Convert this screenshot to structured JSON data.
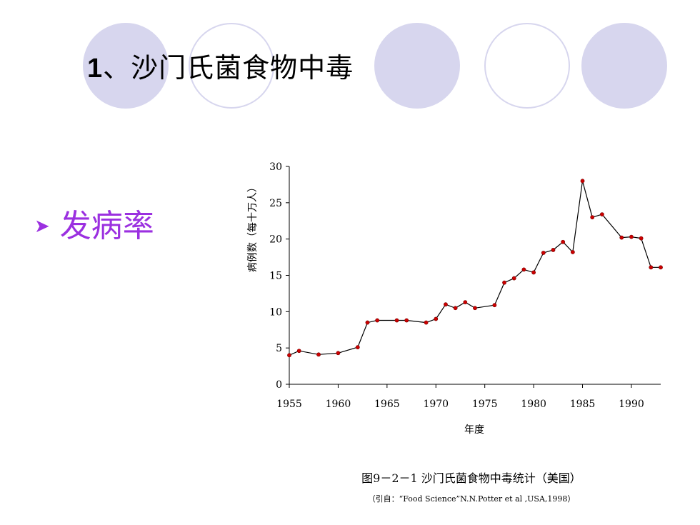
{
  "slide": {
    "title_number": "1",
    "title_text": "、沙门氏菌食物中毒",
    "bullet_text": "发病率"
  },
  "icons": {
    "bullet": "arrow-bullet-icon"
  },
  "colors": {
    "circle_fill": "#d7d6ee",
    "bullet": "#9b30e0",
    "marker": "#cc0000",
    "line": "#000000"
  },
  "chart_data": {
    "type": "line",
    "title": "",
    "xlabel": "年度",
    "ylabel": "病例数（每十万人）",
    "xlim": [
      1955,
      1993
    ],
    "ylim": [
      0,
      30
    ],
    "x_ticks": [
      "1955",
      "1960",
      "1965",
      "1970",
      "1975",
      "1980",
      "1985",
      "1990"
    ],
    "y_ticks": [
      "0",
      "5",
      "10",
      "15",
      "20",
      "25",
      "30"
    ],
    "grid": false,
    "legend": "none",
    "series": [
      {
        "x": [
          1955,
          1956,
          1958,
          1960,
          1962,
          1963,
          1964,
          1966,
          1967,
          1969,
          1970,
          1971,
          1972,
          1973,
          1974,
          1976,
          1977,
          1978,
          1979,
          1980,
          1981,
          1982,
          1983,
          1984,
          1985,
          1986,
          1987,
          1989,
          1990,
          1991,
          1992,
          1993
        ],
        "y": [
          4.0,
          4.6,
          4.1,
          4.3,
          5.1,
          8.5,
          8.8,
          8.8,
          8.8,
          8.5,
          9.0,
          11.0,
          10.5,
          11.3,
          10.5,
          10.9,
          14.0,
          14.6,
          15.8,
          15.4,
          18.1,
          18.5,
          19.6,
          18.2,
          28.0,
          23.0,
          23.4,
          20.2,
          20.3,
          20.1,
          16.1,
          16.1
        ]
      }
    ]
  },
  "caption": {
    "figure": "图9－2－1  沙门氏菌食物中毒统计（美国）",
    "source": "（引自：“Food Science”N.N.Potter et al ,USA,1998）"
  }
}
